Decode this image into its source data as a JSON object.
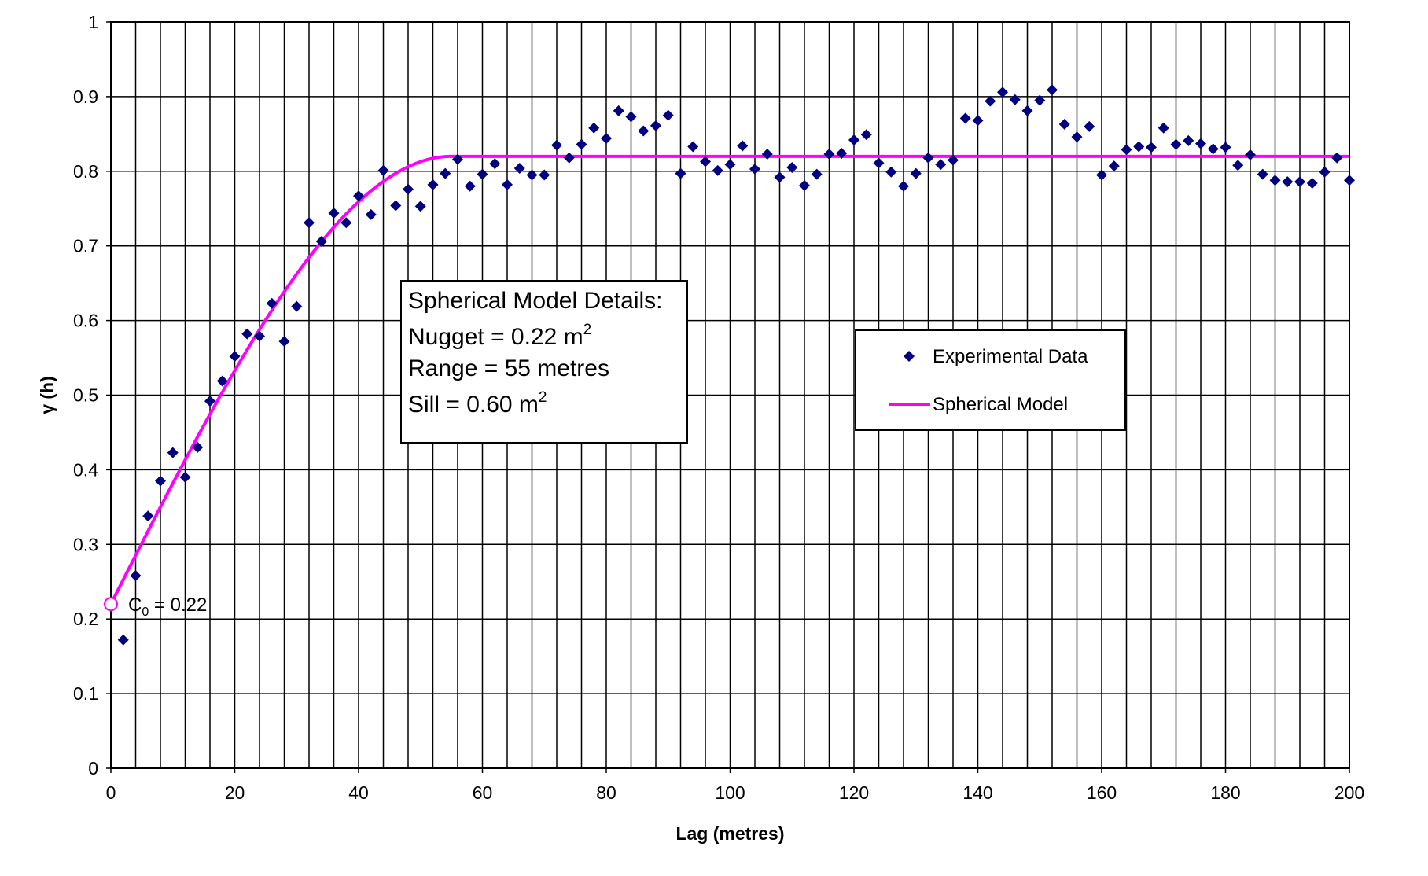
{
  "chart_data": {
    "type": "scatter",
    "xlabel": "Lag (metres)",
    "ylabel": "γ (h)",
    "xlim": [
      0,
      200
    ],
    "ylim": [
      0,
      1
    ],
    "x_ticks": [
      "0",
      "20",
      "40",
      "60",
      "80",
      "100",
      "120",
      "140",
      "160",
      "180",
      "200"
    ],
    "y_ticks": [
      "0",
      "0.1",
      "0.2",
      "0.3",
      "0.4",
      "0.5",
      "0.6",
      "0.7",
      "0.8",
      "0.9",
      "1"
    ],
    "grid": true,
    "colors": {
      "experimental": "#000080",
      "model": "#ff00ff"
    },
    "experimental_data": {
      "name": "Experimental Data",
      "x": [
        2,
        4,
        6,
        8,
        10,
        12,
        14,
        16,
        18,
        20,
        22,
        24,
        26,
        28,
        30,
        32,
        34,
        36,
        38,
        40,
        42,
        44,
        46,
        48,
        50,
        52,
        54,
        56,
        58,
        60,
        62,
        64,
        66,
        68,
        70,
        72,
        74,
        76,
        78,
        80,
        82,
        84,
        86,
        88,
        90,
        92,
        94,
        96,
        98,
        100,
        102,
        104,
        106,
        108,
        110,
        112,
        114,
        116,
        118,
        120,
        122,
        124,
        126,
        128,
        130,
        132,
        134,
        136,
        138,
        140,
        142,
        144,
        146,
        148,
        150,
        152,
        154,
        156,
        158,
        160,
        162,
        164,
        166,
        168,
        170,
        172,
        174,
        176,
        178,
        180,
        182,
        184,
        186,
        188,
        190,
        192,
        194,
        196,
        198,
        200
      ],
      "y": [
        0.172,
        0.258,
        0.338,
        0.385,
        0.423,
        0.39,
        0.43,
        0.492,
        0.519,
        0.552,
        0.582,
        0.579,
        0.623,
        0.572,
        0.619,
        0.731,
        0.706,
        0.744,
        0.731,
        0.767,
        0.742,
        0.801,
        0.754,
        0.776,
        0.753,
        0.782,
        0.797,
        0.816,
        0.78,
        0.796,
        0.81,
        0.782,
        0.804,
        0.795,
        0.795,
        0.835,
        0.818,
        0.836,
        0.858,
        0.844,
        0.881,
        0.873,
        0.854,
        0.861,
        0.875,
        0.797,
        0.833,
        0.813,
        0.801,
        0.809,
        0.834,
        0.803,
        0.823,
        0.792,
        0.805,
        0.781,
        0.796,
        0.823,
        0.824,
        0.842,
        0.849,
        0.811,
        0.799,
        0.78,
        0.797,
        0.818,
        0.809,
        0.815,
        0.871,
        0.868,
        0.894,
        0.906,
        0.896,
        0.881,
        0.895,
        0.909,
        0.863,
        0.846,
        0.86,
        0.795,
        0.807,
        0.829,
        0.833,
        0.832,
        0.858,
        0.836,
        0.841,
        0.837,
        0.83,
        0.832,
        0.808,
        0.822,
        0.796,
        0.788,
        0.786,
        0.786,
        0.784,
        0.799,
        0.818,
        0.788
      ]
    },
    "spherical_model": {
      "name": "Spherical Model",
      "nugget": 0.22,
      "sill": 0.6,
      "range": 55,
      "x_max": 200
    },
    "info_box": {
      "title": "Spherical Model Details:",
      "nugget_label": "Nugget = 0.22 m",
      "range_label": "Range = 55 metres",
      "sill_label": "Sill = 0.60 m",
      "superscript": "2"
    },
    "annotation": {
      "c_label": "C",
      "c_sub": "0",
      "c_value": " = 0.22",
      "x": 0,
      "y": 0.22
    },
    "legend": {
      "placement": "right",
      "items": [
        "Experimental Data",
        "Spherical Model"
      ]
    }
  }
}
